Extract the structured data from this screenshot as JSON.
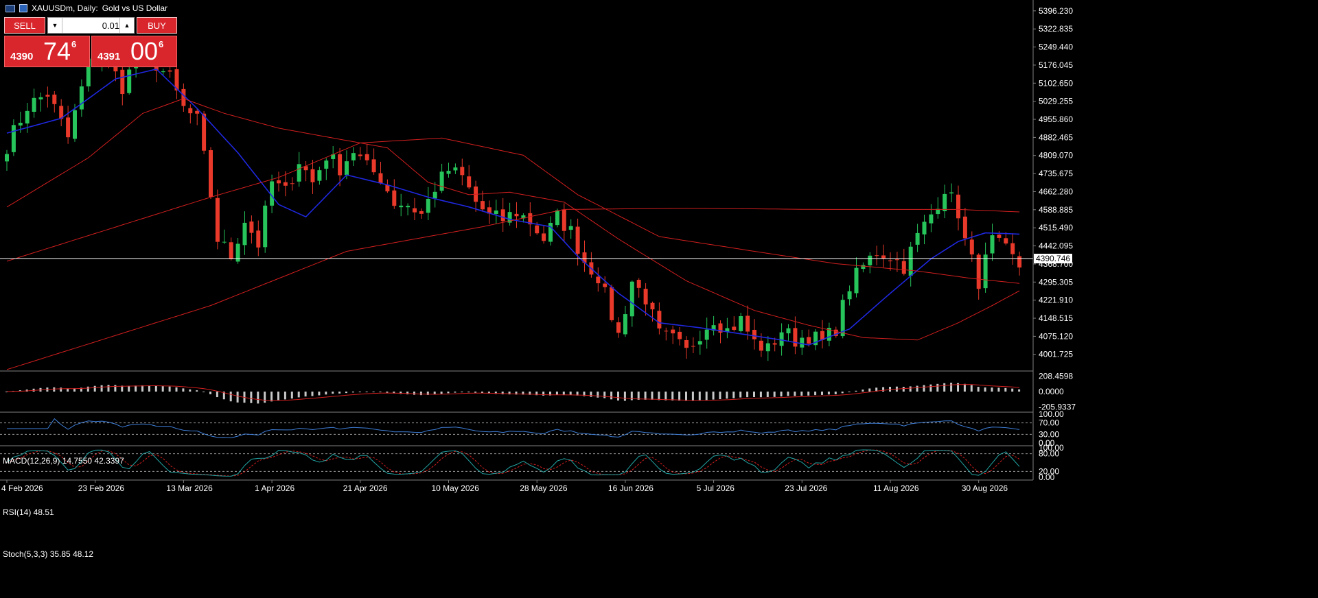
{
  "header": {
    "symbol": "XAUUSDm, Daily:",
    "description": "Gold vs US Dollar"
  },
  "trade_panel": {
    "sell_label": "SELL",
    "buy_label": "BUY",
    "lot": "0.01",
    "sell_price": {
      "prefix": "4390",
      "big": "74",
      "sup": "6"
    },
    "buy_price": {
      "prefix": "4391",
      "big": "00",
      "sup": "6"
    }
  },
  "colors": {
    "up": "#26c45a",
    "down": "#e8392a",
    "ma_fast": "#1f28e0",
    "ma_slow": "#d41f1f",
    "macd_hist": "#c8c8c8",
    "rsi": "#3f7fd9",
    "stoch_main": "#23a4a4",
    "stoch_signal": "#d41f1f",
    "bid_line": "#ffffff"
  },
  "chart_data": {
    "type": "candlestick",
    "title": "XAUUSDm, Daily: Gold vs US Dollar",
    "price_axis_labels": [
      "5396.230",
      "5322.835",
      "5249.440",
      "5176.045",
      "5102.650",
      "5029.255",
      "4955.860",
      "4882.465",
      "4809.070",
      "4735.675",
      "4662.280",
      "4588.885",
      "4515.490",
      "4442.095",
      "4368.700",
      "4295.305",
      "4221.910",
      "4148.515",
      "4075.120",
      "4001.725"
    ],
    "ylim": [
      3937,
      5418
    ],
    "current_price": "4390.746",
    "date_labels": [
      "4 Feb 2026",
      "23 Feb 2026",
      "13 Mar 2026",
      "1 Apr 2026",
      "21 Apr 2026",
      "10 May 2026",
      "28 May 2026",
      "16 Jun 2026",
      "5 Jul 2026",
      "23 Jul 2026",
      "11 Aug 2026",
      "30 Aug 2026"
    ],
    "date_index": [
      0,
      13,
      26,
      39,
      52,
      65,
      78,
      91,
      104,
      117,
      130,
      143
    ],
    "ohlc_key_closes": [
      [
        0,
        4850
      ],
      [
        3,
        5010
      ],
      [
        6,
        5060
      ],
      [
        9,
        4880
      ],
      [
        12,
        5180
      ],
      [
        14,
        5230
      ],
      [
        17,
        5090
      ],
      [
        19,
        5200
      ],
      [
        22,
        5180
      ],
      [
        24,
        5120
      ],
      [
        26,
        5000
      ],
      [
        28,
        4950
      ],
      [
        30,
        4650
      ],
      [
        31,
        4470
      ],
      [
        33,
        4400
      ],
      [
        35,
        4550
      ],
      [
        37,
        4450
      ],
      [
        39,
        4700
      ],
      [
        41,
        4660
      ],
      [
        43,
        4790
      ],
      [
        45,
        4700
      ],
      [
        47,
        4810
      ],
      [
        49,
        4760
      ],
      [
        51,
        4830
      ],
      [
        53,
        4760
      ],
      [
        55,
        4720
      ],
      [
        57,
        4620
      ],
      [
        59,
        4610
      ],
      [
        61,
        4570
      ],
      [
        63,
        4680
      ],
      [
        65,
        4750
      ],
      [
        67,
        4720
      ],
      [
        69,
        4620
      ],
      [
        71,
        4560
      ],
      [
        73,
        4550
      ],
      [
        75,
        4580
      ],
      [
        77,
        4540
      ],
      [
        79,
        4470
      ],
      [
        81,
        4560
      ],
      [
        83,
        4500
      ],
      [
        85,
        4380
      ],
      [
        87,
        4320
      ],
      [
        89,
        4160
      ],
      [
        90,
        4080
      ],
      [
        92,
        4300
      ],
      [
        94,
        4230
      ],
      [
        96,
        4080
      ],
      [
        98,
        4060
      ],
      [
        100,
        4010
      ],
      [
        102,
        4090
      ],
      [
        104,
        4150
      ],
      [
        106,
        4100
      ],
      [
        108,
        4140
      ],
      [
        110,
        4050
      ],
      [
        112,
        4020
      ],
      [
        114,
        4100
      ],
      [
        116,
        4060
      ],
      [
        118,
        4080
      ],
      [
        120,
        4050
      ],
      [
        122,
        4110
      ],
      [
        124,
        4280
      ],
      [
        126,
        4360
      ],
      [
        128,
        4420
      ],
      [
        130,
        4400
      ],
      [
        132,
        4360
      ],
      [
        134,
        4480
      ],
      [
        136,
        4570
      ],
      [
        138,
        4680
      ],
      [
        140,
        4580
      ],
      [
        141,
        4460
      ],
      [
        143,
        4300
      ],
      [
        145,
        4460
      ],
      [
        147,
        4420
      ],
      [
        149,
        4360
      ]
    ],
    "moving_averages": [
      {
        "period_type": "fast",
        "values": [
          [
            0,
            4900
          ],
          [
            8,
            4960
          ],
          [
            16,
            5120
          ],
          [
            22,
            5160
          ],
          [
            28,
            5000
          ],
          [
            34,
            4820
          ],
          [
            40,
            4610
          ],
          [
            44,
            4560
          ],
          [
            50,
            4730
          ],
          [
            56,
            4690
          ],
          [
            62,
            4640
          ],
          [
            68,
            4600
          ],
          [
            74,
            4550
          ],
          [
            80,
            4520
          ],
          [
            84,
            4400
          ],
          [
            90,
            4250
          ],
          [
            96,
            4130
          ],
          [
            102,
            4110
          ],
          [
            108,
            4085
          ],
          [
            114,
            4060
          ],
          [
            118,
            4040
          ],
          [
            124,
            4105
          ],
          [
            130,
            4250
          ],
          [
            136,
            4390
          ],
          [
            140,
            4460
          ],
          [
            144,
            4495
          ],
          [
            149,
            4490
          ]
        ]
      },
      {
        "period_type": "slow",
        "values": [
          [
            0,
            4600
          ],
          [
            12,
            4800
          ],
          [
            20,
            4980
          ],
          [
            26,
            5040
          ],
          [
            32,
            4980
          ],
          [
            40,
            4920
          ],
          [
            48,
            4880
          ],
          [
            56,
            4840
          ],
          [
            62,
            4700
          ],
          [
            68,
            4650
          ],
          [
            74,
            4660
          ],
          [
            82,
            4620
          ],
          [
            90,
            4470
          ],
          [
            100,
            4300
          ],
          [
            110,
            4180
          ],
          [
            118,
            4120
          ],
          [
            126,
            4070
          ],
          [
            134,
            4060
          ],
          [
            140,
            4130
          ],
          [
            145,
            4200
          ],
          [
            149,
            4260
          ]
        ]
      },
      {
        "period_type": "slower",
        "values": [
          [
            0,
            4380
          ],
          [
            30,
            4640
          ],
          [
            40,
            4720
          ],
          [
            52,
            4860
          ],
          [
            64,
            4880
          ],
          [
            76,
            4810
          ],
          [
            84,
            4650
          ],
          [
            96,
            4480
          ],
          [
            110,
            4420
          ],
          [
            122,
            4370
          ],
          [
            134,
            4340
          ],
          [
            142,
            4310
          ],
          [
            149,
            4290
          ]
        ]
      },
      {
        "period_type": "slowest",
        "values": [
          [
            0,
            3940
          ],
          [
            30,
            4200
          ],
          [
            50,
            4420
          ],
          [
            70,
            4520
          ],
          [
            82,
            4590
          ],
          [
            100,
            4595
          ],
          [
            120,
            4590
          ],
          [
            140,
            4590
          ],
          [
            149,
            4580
          ]
        ]
      }
    ],
    "indicators": {
      "macd": {
        "label": "MACD(12,26,9) 14.7550 42.3397",
        "axis_labels": [
          "208.4598",
          "0.0000",
          "-205.9337"
        ],
        "ylim": [
          -230,
          230
        ]
      },
      "rsi": {
        "label": "RSI(14) 48.51",
        "axis_labels": [
          "100.00",
          "70.00",
          "30.00",
          "0.00"
        ],
        "levels": [
          70,
          30
        ],
        "ylim": [
          0,
          100
        ]
      },
      "stoch": {
        "label": "Stoch(5,3,3) 35.85 48.12",
        "axis_labels": [
          "100.00",
          "80.00",
          "20.00",
          "0.00"
        ],
        "levels": [
          80,
          20
        ],
        "ylim": [
          0,
          100
        ]
      }
    }
  }
}
